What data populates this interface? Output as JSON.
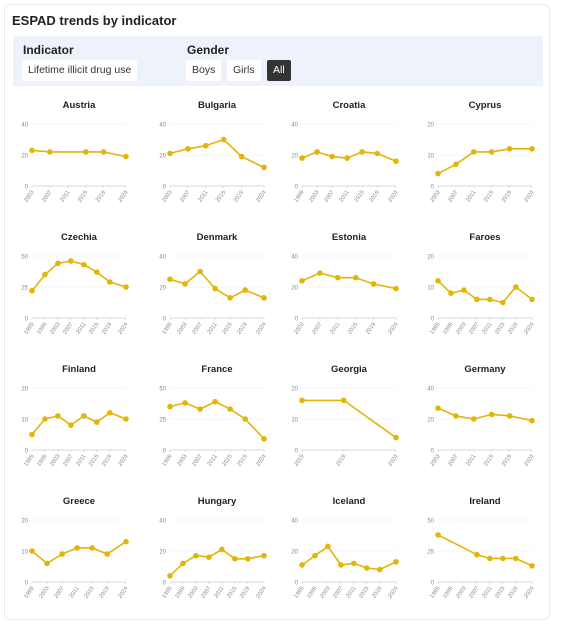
{
  "page": {
    "title": "ESPAD trends by indicator"
  },
  "controls": {
    "indicator_label": "Indicator",
    "indicator_value": "Lifetime illicit drug use",
    "gender_label": "Gender",
    "gender_options": [
      "Boys",
      "Girls",
      "All"
    ],
    "gender_selected": "All"
  },
  "colors": {
    "series": "#e3b409",
    "axis": "#888888",
    "grid": "#eeeeee",
    "text": "#333333"
  },
  "chart_data": [
    {
      "type": "line",
      "title": "Austria",
      "x": [
        2003,
        2007,
        2015,
        2019,
        2024
      ],
      "values": [
        23,
        22,
        22,
        22,
        19
      ],
      "ylim": [
        0,
        40
      ],
      "yticks": [
        0,
        20,
        40
      ],
      "xticks": [
        2003,
        2007,
        2011,
        2015,
        2019,
        2024
      ]
    },
    {
      "type": "line",
      "title": "Bulgaria",
      "x": [
        2003,
        2007,
        2011,
        2015,
        2019,
        2024
      ],
      "values": [
        21,
        24,
        26,
        30,
        19,
        12
      ],
      "ylim": [
        0,
        40
      ],
      "yticks": [
        0,
        20,
        40
      ],
      "xticks": [
        2003,
        2007,
        2011,
        2015,
        2019,
        2024
      ]
    },
    {
      "type": "line",
      "title": "Croatia",
      "x": [
        1999,
        2003,
        2007,
        2011,
        2015,
        2019,
        2024
      ],
      "values": [
        18,
        22,
        19,
        18,
        22,
        21,
        16
      ],
      "ylim": [
        0,
        40
      ],
      "yticks": [
        0,
        20,
        40
      ],
      "xticks": [
        1999,
        2003,
        2007,
        2011,
        2015,
        2019,
        2024
      ]
    },
    {
      "type": "line",
      "title": "Cyprus",
      "x": [
        2003,
        2007,
        2011,
        2015,
        2019,
        2024
      ],
      "values": [
        4,
        7,
        11,
        11,
        12,
        12
      ],
      "ylim": [
        0,
        20
      ],
      "yticks": [
        0,
        10,
        20
      ],
      "xticks": [
        2003,
        2007,
        2011,
        2015,
        2019,
        2024
      ]
    },
    {
      "type": "line",
      "title": "Czechia",
      "x": [
        1995,
        1999,
        2003,
        2007,
        2011,
        2015,
        2019,
        2024
      ],
      "values": [
        22,
        35,
        44,
        46,
        43,
        37,
        29,
        25
      ],
      "ylim": [
        0,
        50
      ],
      "yticks": [
        0,
        25,
        50
      ],
      "xticks": [
        1995,
        1999,
        2003,
        2007,
        2011,
        2015,
        2019,
        2024
      ]
    },
    {
      "type": "line",
      "title": "Denmark",
      "x": [
        1999,
        2003,
        2007,
        2011,
        2015,
        2019,
        2024
      ],
      "values": [
        25,
        22,
        30,
        19,
        13,
        18,
        13
      ],
      "ylim": [
        0,
        40
      ],
      "yticks": [
        0,
        20,
        40
      ],
      "xticks": [
        1999,
        2003,
        2007,
        2011,
        2015,
        2019,
        2024
      ]
    },
    {
      "type": "line",
      "title": "Estonia",
      "x": [
        2003,
        2007,
        2011,
        2015,
        2019,
        2024
      ],
      "values": [
        24,
        29,
        26,
        26,
        22,
        19
      ],
      "ylim": [
        0,
        40
      ],
      "yticks": [
        0,
        20,
        40
      ],
      "xticks": [
        2003,
        2007,
        2011,
        2015,
        2019,
        2024
      ]
    },
    {
      "type": "line",
      "title": "Faroes",
      "x": [
        1995,
        1999,
        2003,
        2007,
        2011,
        2015,
        2019,
        2024
      ],
      "values": [
        12,
        8,
        9,
        6,
        6,
        5,
        10,
        6
      ],
      "ylim": [
        0,
        20
      ],
      "yticks": [
        0,
        10,
        20
      ],
      "xticks": [
        1995,
        1999,
        2003,
        2007,
        2011,
        2015,
        2019,
        2024
      ]
    },
    {
      "type": "line",
      "title": "Finland",
      "x": [
        1995,
        1999,
        2003,
        2007,
        2011,
        2015,
        2019,
        2024
      ],
      "values": [
        5,
        10,
        11,
        8,
        11,
        9,
        12,
        10
      ],
      "ylim": [
        0,
        20
      ],
      "yticks": [
        0,
        10,
        20
      ],
      "xticks": [
        1995,
        1999,
        2003,
        2007,
        2011,
        2015,
        2019,
        2024
      ]
    },
    {
      "type": "line",
      "title": "France",
      "x": [
        1999,
        2003,
        2007,
        2011,
        2015,
        2019,
        2024
      ],
      "values": [
        35,
        38,
        33,
        39,
        33,
        25,
        9
      ],
      "ylim": [
        0,
        50
      ],
      "yticks": [
        0,
        25,
        50
      ],
      "xticks": [
        1999,
        2003,
        2007,
        2011,
        2015,
        2019,
        2024
      ]
    },
    {
      "type": "line",
      "title": "Georgia",
      "x": [
        2015,
        2019,
        2024
      ],
      "values": [
        16,
        16,
        4
      ],
      "ylim": [
        0,
        20
      ],
      "yticks": [
        0,
        10,
        20
      ],
      "xticks": [
        2015,
        2019,
        2024
      ]
    },
    {
      "type": "line",
      "title": "Germany",
      "x": [
        2003,
        2007,
        2011,
        2015,
        2019,
        2024
      ],
      "values": [
        27,
        22,
        20,
        23,
        22,
        19
      ],
      "ylim": [
        0,
        40
      ],
      "yticks": [
        0,
        20,
        40
      ],
      "xticks": [
        2003,
        2007,
        2011,
        2015,
        2019,
        2024
      ]
    },
    {
      "type": "line",
      "title": "Greece",
      "x": [
        1999,
        2003,
        2007,
        2011,
        2015,
        2019,
        2024
      ],
      "values": [
        10,
        6,
        9,
        11,
        11,
        9,
        13
      ],
      "ylim": [
        0,
        20
      ],
      "yticks": [
        0,
        10,
        20
      ],
      "xticks": [
        1999,
        2003,
        2007,
        2011,
        2015,
        2019,
        2024
      ]
    },
    {
      "type": "line",
      "title": "Hungary",
      "x": [
        1995,
        1999,
        2003,
        2007,
        2011,
        2015,
        2019,
        2024
      ],
      "values": [
        4,
        12,
        17,
        16,
        21,
        15,
        15,
        17
      ],
      "ylim": [
        0,
        40
      ],
      "yticks": [
        0,
        20,
        40
      ],
      "xticks": [
        1995,
        1999,
        2003,
        2007,
        2011,
        2015,
        2019,
        2024
      ]
    },
    {
      "type": "line",
      "title": "Iceland",
      "x": [
        1995,
        1999,
        2003,
        2007,
        2011,
        2015,
        2019,
        2024
      ],
      "values": [
        11,
        17,
        23,
        11,
        12,
        9,
        8,
        13
      ],
      "ylim": [
        0,
        40
      ],
      "yticks": [
        0,
        20,
        40
      ],
      "xticks": [
        1995,
        1999,
        2003,
        2007,
        2011,
        2015,
        2019,
        2024
      ]
    },
    {
      "type": "line",
      "title": "Ireland",
      "x": [
        1995,
        2007,
        2011,
        2015,
        2019,
        2024
      ],
      "values": [
        38,
        22,
        19,
        19,
        19,
        13
      ],
      "ylim": [
        0,
        50
      ],
      "yticks": [
        0,
        25,
        50
      ],
      "xticks": [
        1995,
        1999,
        2003,
        2007,
        2011,
        2015,
        2019,
        2024
      ]
    }
  ]
}
